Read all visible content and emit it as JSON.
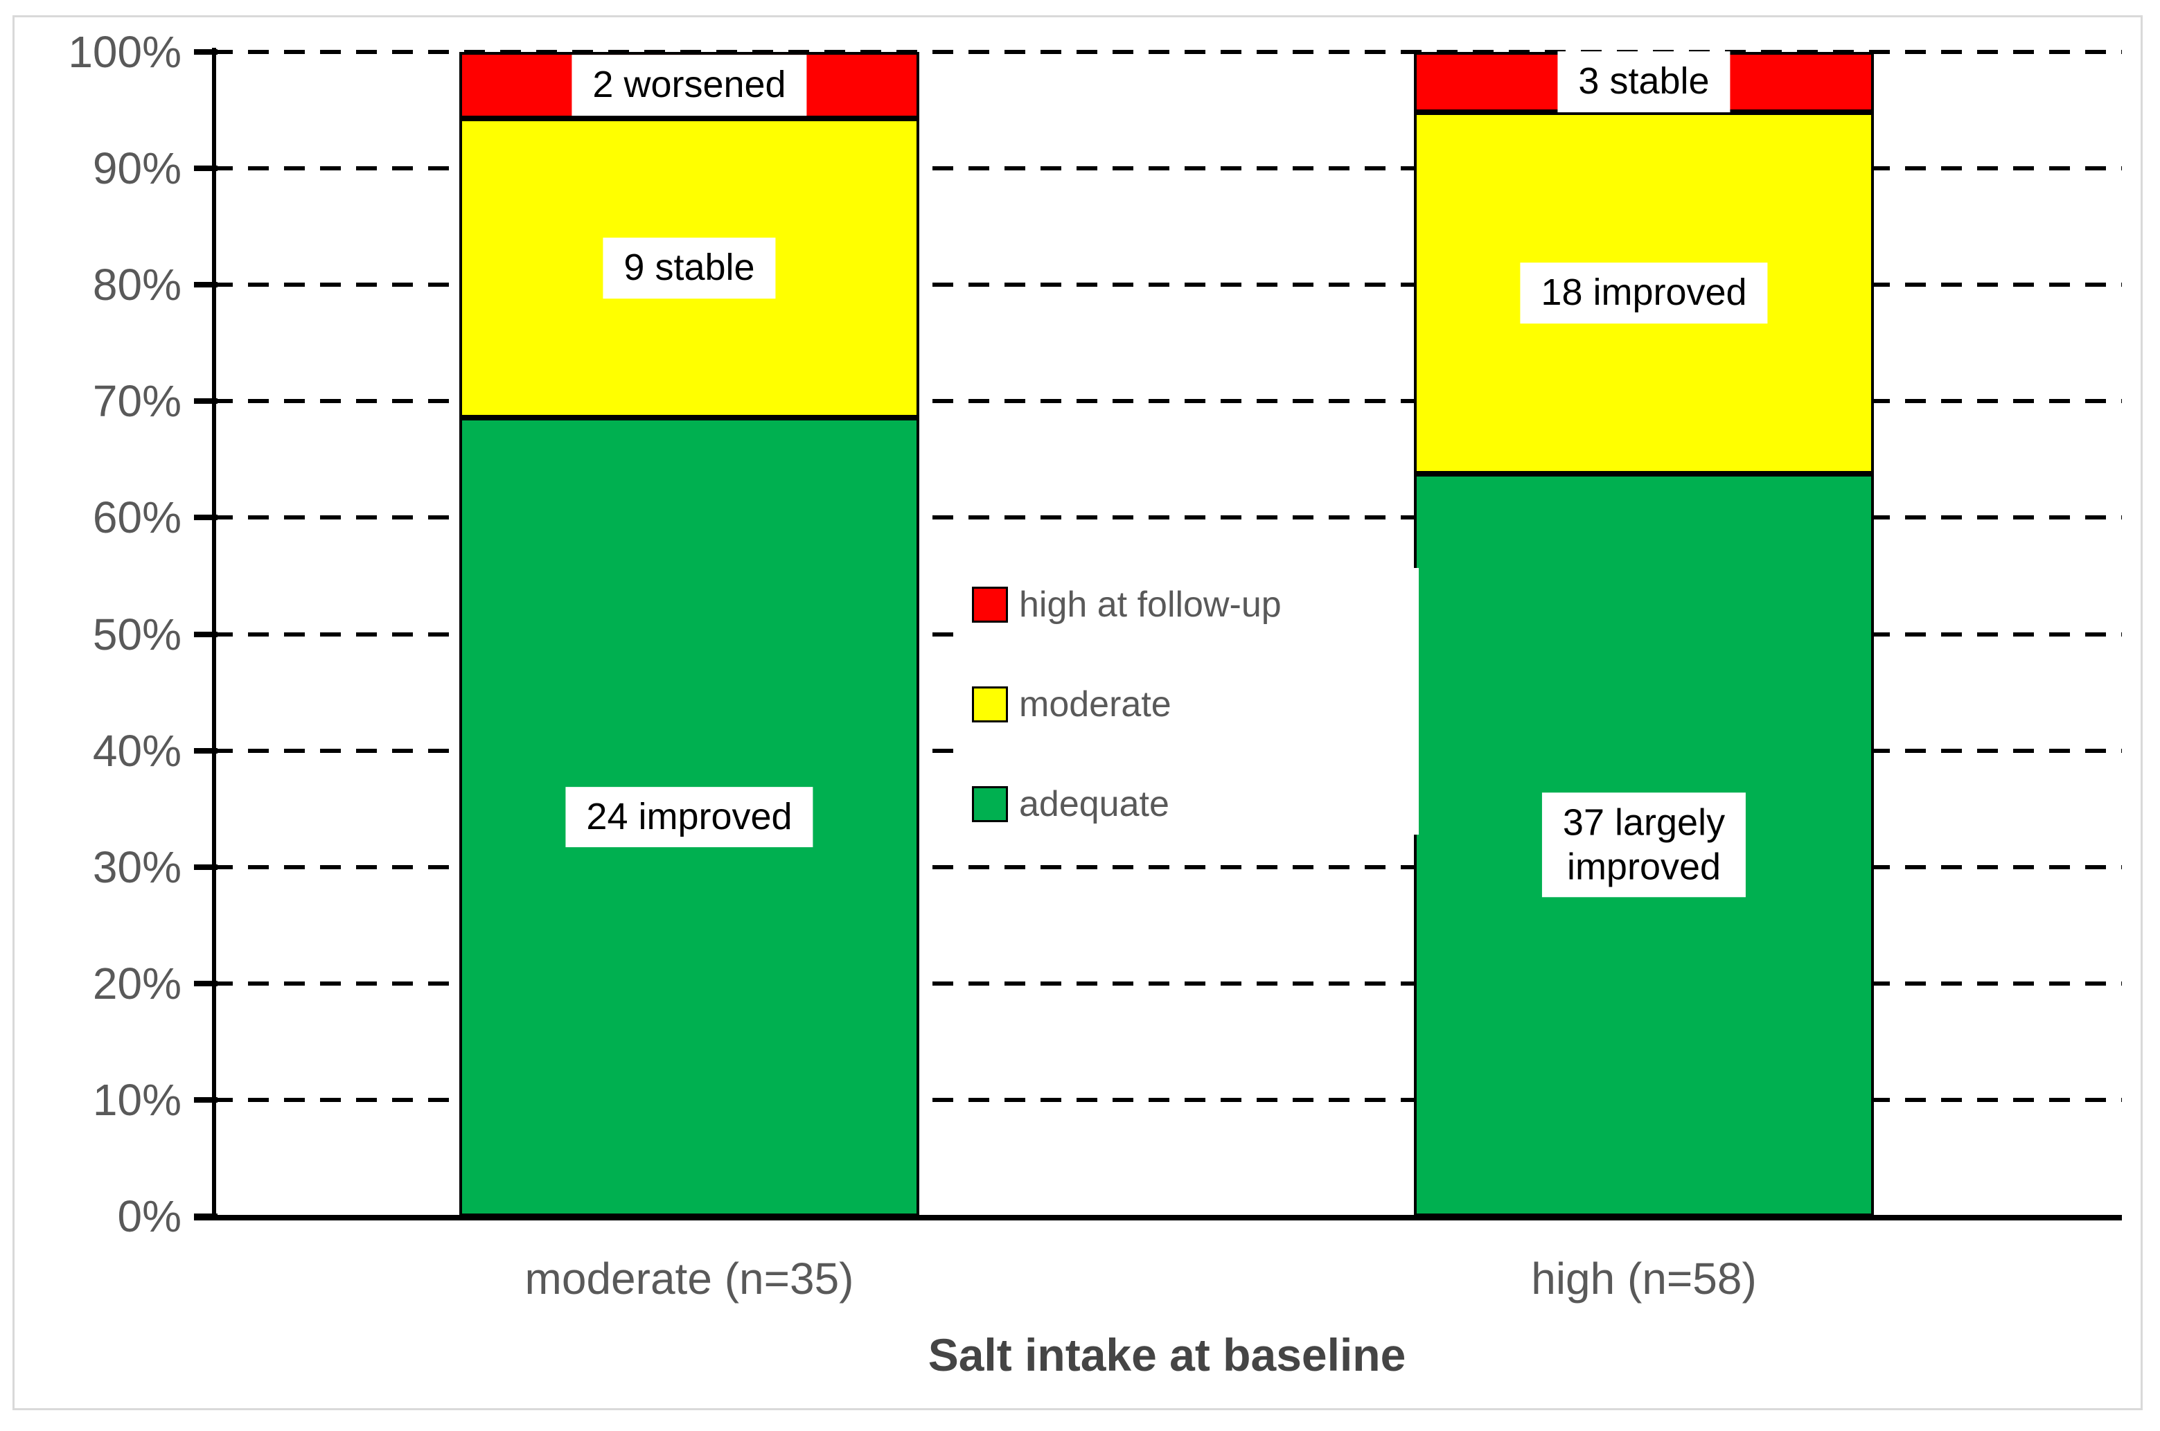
{
  "chart_data": {
    "type": "bar",
    "variant": "stacked-column-100pct",
    "title": "",
    "xlabel": "Salt intake at baseline",
    "categories": [
      "moderate (n=35)",
      "high (n=58)"
    ],
    "group_sizes": [
      35,
      58
    ],
    "series": [
      {
        "name": "adequate",
        "color": "#00B050",
        "counts": [
          24,
          37
        ],
        "pct_of_group": [
          68.6,
          63.8
        ],
        "segment_labels": [
          "24 improved",
          "37 largely\nimproved"
        ]
      },
      {
        "name": "moderate",
        "color": "#FFFF00",
        "counts": [
          9,
          18
        ],
        "pct_of_group": [
          25.7,
          31.0
        ],
        "segment_labels": [
          "9 stable",
          "18 improved"
        ]
      },
      {
        "name": "high at follow-up",
        "color": "#FF0000",
        "counts": [
          2,
          3
        ],
        "pct_of_group": [
          5.7,
          5.2
        ],
        "segment_labels": [
          "2 worsened",
          "3 stable"
        ]
      }
    ],
    "legend": {
      "position": "center-of-plot",
      "entries": [
        "high at follow-up",
        "moderate",
        "adequate"
      ]
    },
    "y_axis": {
      "range": [
        0,
        100
      ],
      "ticks": [
        "0%",
        "10%",
        "20%",
        "30%",
        "40%",
        "50%",
        "60%",
        "70%",
        "80%",
        "90%",
        "100%"
      ],
      "gridlines": "dashed"
    },
    "x_axis": {
      "label": "Salt intake at baseline"
    },
    "styles": {
      "grid_color": "#000000",
      "axis_color": "#000000",
      "tick_label_color": "#595959",
      "category_label_color": "#595959",
      "axis_title_color": "#454545",
      "segment_border_color": "#000000",
      "label_box_bg": "#FFFFFF",
      "figure_border_color": "#D9D9D9"
    }
  }
}
